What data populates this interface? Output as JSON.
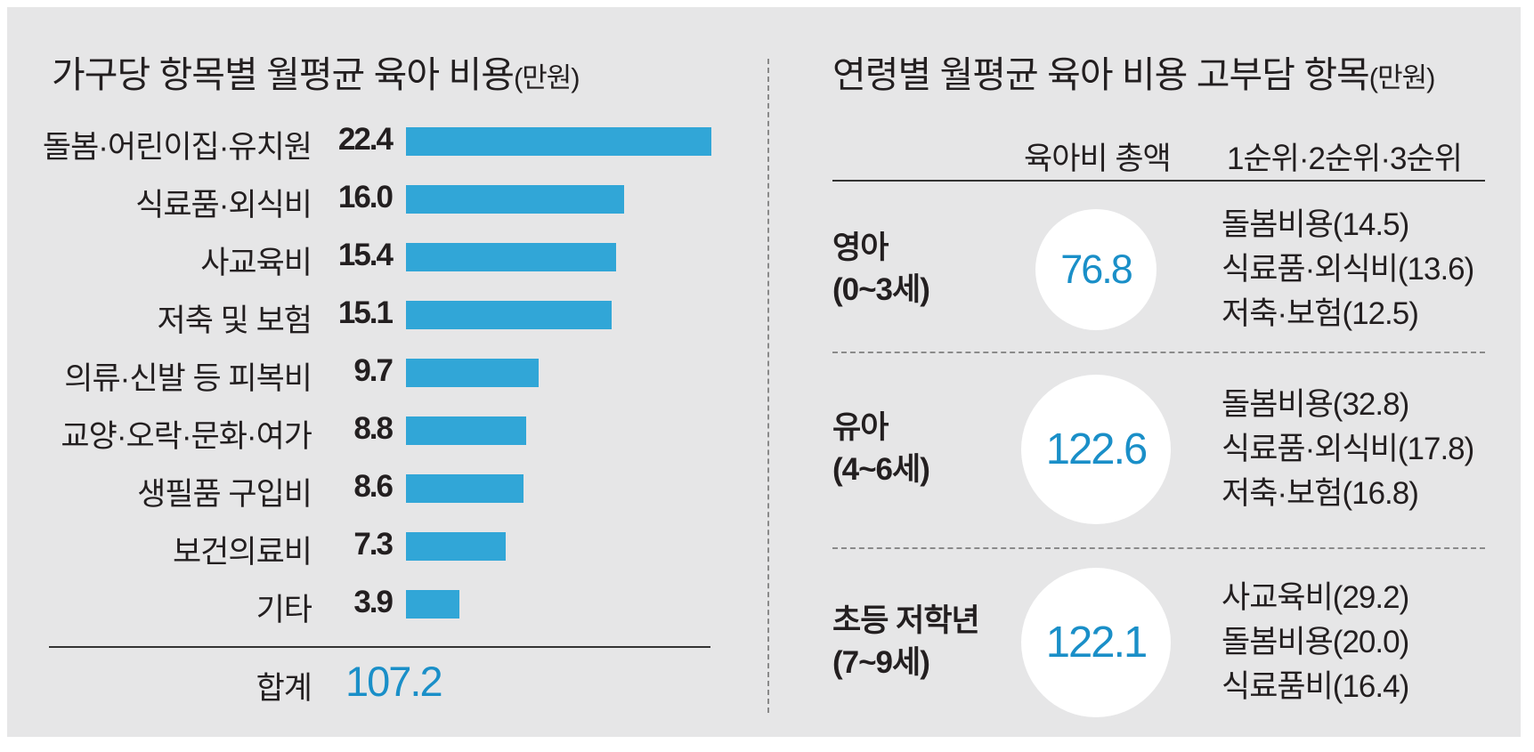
{
  "left": {
    "title": "가구당 항목별 월평균 육아 비용",
    "unit": "(만원)",
    "total_label": "합계",
    "total_value": "107.2"
  },
  "chart_data": [
    {
      "type": "bar",
      "orientation": "horizontal",
      "title": "가구당 항목별 월평균 육아 비용(만원)",
      "categories": [
        "돌봄·어린이집·유치원",
        "식료품·외식비",
        "사교육비",
        "저축 및 보험",
        "의류·신발 등 피복비",
        "교양·오락·문화·여가",
        "생필품 구입비",
        "보건의료비",
        "기타"
      ],
      "values": [
        22.4,
        16.0,
        15.4,
        15.1,
        9.7,
        8.8,
        8.6,
        7.3,
        3.9
      ],
      "value_labels": [
        "22.4",
        "16.0",
        "15.4",
        "15.1",
        "9.7",
        "8.8",
        "8.6",
        "7.3",
        "3.9"
      ],
      "color": "#31a6d7",
      "total": 107.2,
      "xlim": [
        0,
        22.4
      ]
    },
    {
      "type": "table",
      "title": "연령별 월평균 육아 비용 고부담 항목(만원)",
      "columns": [
        "육아비 총액",
        "1순위·2순위·3순위"
      ],
      "rows": [
        {
          "group": "영아",
          "age": "(0~3세)",
          "total": "76.8",
          "ranks": [
            "돌봄비용(14.5)",
            "식료품·외식비(13.6)",
            "저축·보험(12.5)"
          ]
        },
        {
          "group": "유아",
          "age": "(4~6세)",
          "total": "122.6",
          "ranks": [
            "돌봄비용(32.8)",
            "식료품·외식비(17.8)",
            "저축·보험(16.8)"
          ]
        },
        {
          "group": "초등 저학년",
          "age": "(7~9세)",
          "total": "122.1",
          "ranks": [
            "사교육비(29.2)",
            "돌봄비용(20.0)",
            "식료품비(16.4)"
          ]
        }
      ]
    }
  ],
  "right": {
    "title": "연령별 월평균 육아 비용 고부담 항목",
    "unit": "(만원)",
    "col_total": "육아비 총액",
    "col_rank": "1순위·2순위·3순위"
  },
  "colors": {
    "bar": "#31a6d7",
    "accent_text": "#1a8fc8",
    "panel": "#e6e6e7"
  }
}
